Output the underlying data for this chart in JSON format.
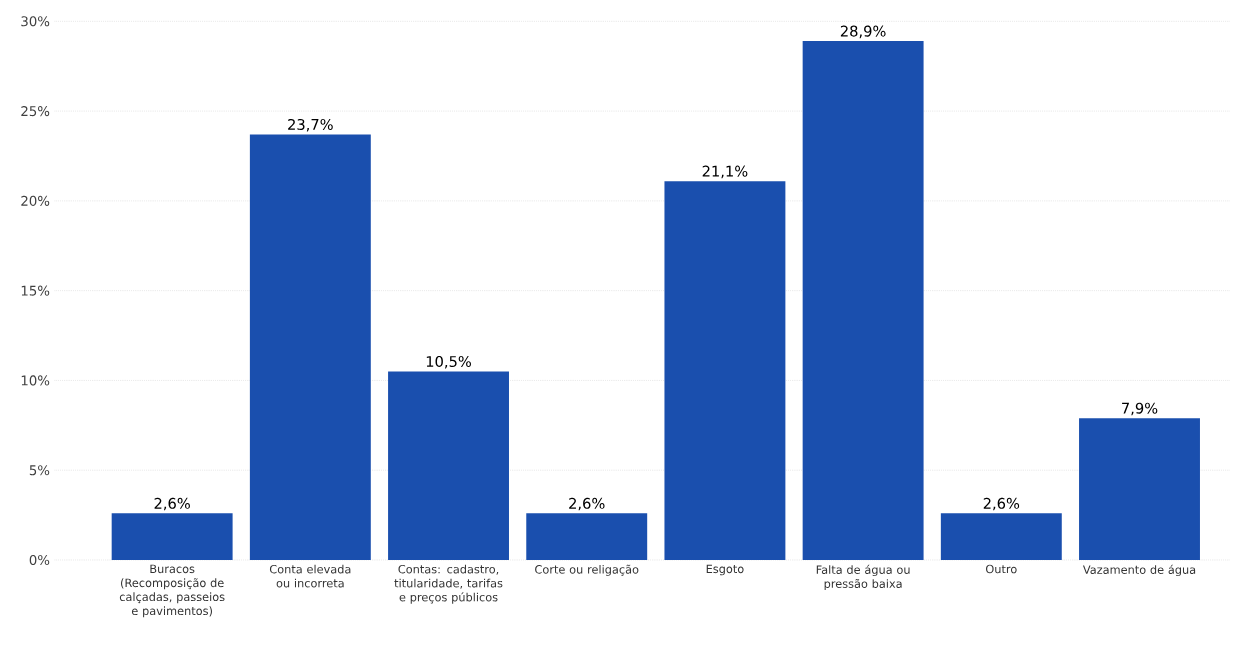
{
  "chart_data": {
    "type": "bar",
    "categories": [
      "Buracos (Recomposição de calçadas, passeios e pavimentos)",
      "Conta elevada ou incorreta",
      "Contas: cadastro, titularidade, tarifas e preços públicos",
      "Corte ou religação",
      "Esgoto",
      "Falta de água ou pressão baixa",
      "Outro",
      "Vazamento de água"
    ],
    "values": [
      2.6,
      23.7,
      10.5,
      2.6,
      21.1,
      28.9,
      2.6,
      7.9
    ],
    "value_labels": [
      "2,6%",
      "23,7%",
      "10,5%",
      "2,6%",
      "21,1%",
      "28,9%",
      "2,6%",
      "7,9%"
    ],
    "color": "#1a4fae",
    "ylim": [
      0,
      30
    ],
    "yticks": [
      {
        "value": 0,
        "label": "0%"
      },
      {
        "value": 5,
        "label": "5%"
      },
      {
        "value": 10,
        "label": "10%"
      },
      {
        "value": 15,
        "label": "15%"
      },
      {
        "value": 20,
        "label": "20%"
      },
      {
        "value": 25,
        "label": "25%"
      },
      {
        "value": 30,
        "label": "30%"
      }
    ],
    "grid": "y"
  }
}
